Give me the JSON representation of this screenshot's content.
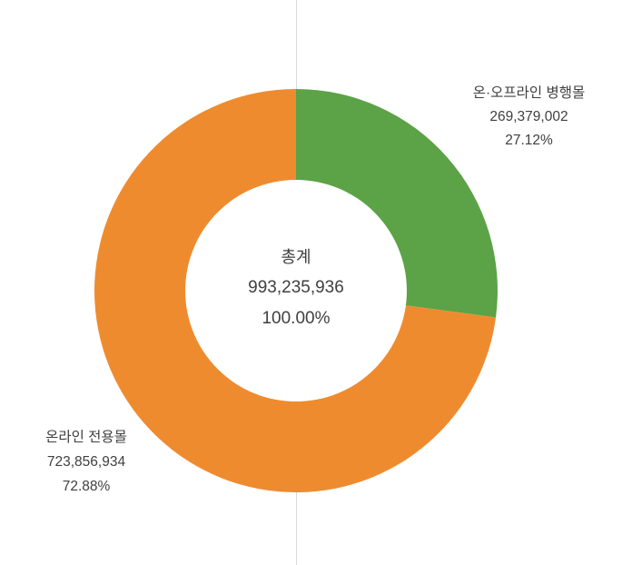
{
  "chart_data": {
    "type": "pie",
    "subtype": "donut",
    "title": "",
    "start_angle_deg": 0,
    "direction": "clockwise",
    "total": 993235936,
    "center_label": {
      "title": "총계",
      "value_text": "993,235,936",
      "percent_text": "100.00%"
    },
    "slices": [
      {
        "label": "온·오프라인 병행몰",
        "value": 269379002,
        "value_text": "269,379,002",
        "percent": 27.12,
        "percent_text": "27.12%",
        "color": "#5ba346"
      },
      {
        "label": "온라인 전용몰",
        "value": 723856934,
        "value_text": "723,856,934",
        "percent": 72.88,
        "percent_text": "72.88%",
        "color": "#ef8b2f"
      }
    ],
    "legend": "none",
    "gridline_color": "#d9d9d9",
    "hole_color": "#ffffff"
  }
}
